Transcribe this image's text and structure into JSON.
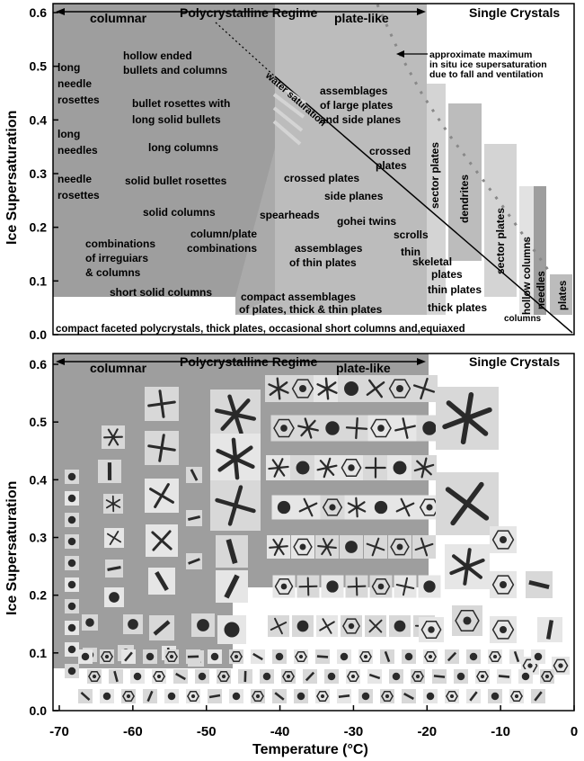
{
  "axes": {
    "x_label": "Temperature (°C)",
    "y_label_top": "Ice Supersaturation",
    "y_label_bottom": "Ice Supersaturation",
    "x_ticks": [
      "-70",
      "-60",
      "-50",
      "-40",
      "-30",
      "-20",
      "-10",
      "0"
    ],
    "y_ticks": [
      "0.0",
      "0.1",
      "0.2",
      "0.3",
      "0.4",
      "0.5",
      "0.6"
    ]
  },
  "top_panel": {
    "poly_regime": "Polycrystalline Regime",
    "columnar": "columnar",
    "plate_like": "plate-like",
    "single_crystals": "Single Crystals",
    "water_saturation": "water saturation",
    "max_annotation": [
      "approximate maximum",
      "in situ ice supersaturation",
      "due to fall and ventilation"
    ],
    "habits": {
      "long_needle_rosettes": [
        "long",
        "needle",
        "rosettes"
      ],
      "hollow_bullets": [
        "hollow ended",
        "bullets and columns"
      ],
      "long_needles": [
        "long",
        "needles"
      ],
      "bullet_rosettes": [
        "bullet rosettes with",
        "long solid bullets"
      ],
      "long_columns": "long columns",
      "needle_rosettes": [
        "needle",
        "rosettes"
      ],
      "solid_bullet_rosettes": "solid bullet rosettes",
      "solid_columns": "solid columns",
      "irregulars": [
        "combinations",
        "of irreguiars",
        "& columns"
      ],
      "column_plate": [
        "column/plate",
        "combinations"
      ],
      "short_solid_columns": "short solid columns",
      "large_plates": [
        "assemblages",
        "of large plates",
        "and side planes"
      ],
      "crossed_plates_1": "crossed plates",
      "crossed_plates_2": [
        "crossed",
        "plates"
      ],
      "side_planes": "side planes",
      "spearheads": "spearheads",
      "gohei_twins": "gohei twins",
      "scrolls": "scrolls",
      "thin_assemblages": [
        "assemblages",
        "of thin plates"
      ],
      "thin": "thin",
      "skeletal": [
        "skeletal",
        "plates"
      ],
      "compact_assemblages": [
        "compact assemblages",
        "of plates, thick & thin plates"
      ],
      "thin_plates": "thin plates",
      "thick_plates": "thick plates",
      "sector_plates_1": "sector plates",
      "dendrites": "dendrites",
      "sector_plates_2": "sector plates",
      "hollow_columns": "hollow columns",
      "needles": "needles",
      "plates": "plates",
      "columns": "columns",
      "bottom_band": "compact faceted polycrystals, thick plates, occasional short columns and,equiaxed"
    }
  },
  "bottom_panel": {
    "poly_regime": "Polycrystalline Regime",
    "columnar": "columnar",
    "plate_like": "plate-like",
    "single_crystals": "Single Crystals"
  },
  "colors": {
    "dark_region": "#9e9e9e",
    "medium_region": "#bcbcbc",
    "light_region": "#d4d4d4",
    "lighter_region": "#e2e2e2",
    "crystal_dark": "#2a2a2a"
  }
}
